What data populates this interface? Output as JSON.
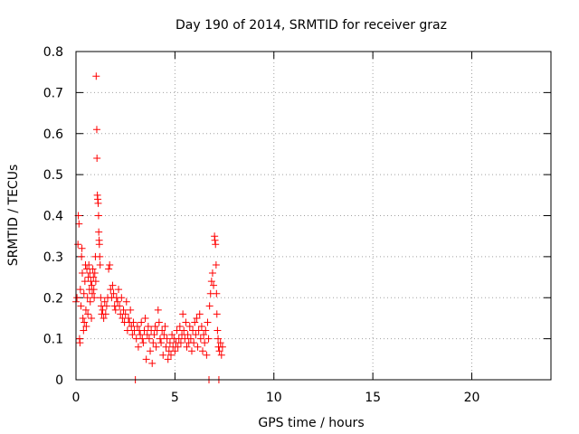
{
  "chart_data": {
    "type": "scatter",
    "title": "Day 190 of 2014, SRMTID for receiver graz",
    "xlabel": "GPS time / hours",
    "ylabel": "SRMTID / TECUs",
    "xlim": [
      0,
      24
    ],
    "ylim": [
      0,
      0.8
    ],
    "xticks": [
      0,
      5,
      10,
      15,
      20
    ],
    "yticks": [
      0,
      0.1,
      0.2,
      0.3,
      0.4,
      0.5,
      0.6,
      0.7,
      0.8
    ],
    "xtick_labels": [
      "0",
      "5",
      "10",
      "15",
      "20"
    ],
    "ytick_labels": [
      "0",
      "0.1",
      "0.2",
      "0.3",
      "0.4",
      "0.5",
      "0.6",
      "0.7",
      "0.8"
    ],
    "grid": true,
    "marker": "+",
    "series": [
      {
        "name": "graz",
        "color": "#ff0000",
        "points": [
          [
            0.0,
            0.19
          ],
          [
            0.05,
            0.2
          ],
          [
            0.1,
            0.33
          ],
          [
            0.12,
            0.4
          ],
          [
            0.15,
            0.38
          ],
          [
            0.18,
            0.1
          ],
          [
            0.2,
            0.09
          ],
          [
            0.22,
            0.22
          ],
          [
            0.25,
            0.18
          ],
          [
            0.28,
            0.3
          ],
          [
            0.3,
            0.32
          ],
          [
            0.32,
            0.26
          ],
          [
            0.35,
            0.15
          ],
          [
            0.38,
            0.12
          ],
          [
            0.4,
            0.21
          ],
          [
            0.42,
            0.14
          ],
          [
            0.45,
            0.24
          ],
          [
            0.48,
            0.28
          ],
          [
            0.5,
            0.17
          ],
          [
            0.52,
            0.13
          ],
          [
            0.55,
            0.27
          ],
          [
            0.58,
            0.2
          ],
          [
            0.6,
            0.16
          ],
          [
            0.62,
            0.25
          ],
          [
            0.65,
            0.28
          ],
          [
            0.68,
            0.22
          ],
          [
            0.7,
            0.26
          ],
          [
            0.72,
            0.19
          ],
          [
            0.75,
            0.24
          ],
          [
            0.78,
            0.15
          ],
          [
            0.8,
            0.23
          ],
          [
            0.82,
            0.21
          ],
          [
            0.85,
            0.27
          ],
          [
            0.88,
            0.25
          ],
          [
            0.9,
            0.22
          ],
          [
            0.92,
            0.2
          ],
          [
            0.95,
            0.26
          ],
          [
            0.98,
            0.3
          ],
          [
            1.0,
            0.24
          ],
          [
            1.02,
            0.74
          ],
          [
            1.05,
            0.61
          ],
          [
            1.06,
            0.54
          ],
          [
            1.08,
            0.45
          ],
          [
            1.1,
            0.44
          ],
          [
            1.12,
            0.43
          ],
          [
            1.14,
            0.4
          ],
          [
            1.15,
            0.36
          ],
          [
            1.17,
            0.34
          ],
          [
            1.18,
            0.33
          ],
          [
            1.2,
            0.3
          ],
          [
            1.22,
            0.28
          ],
          [
            1.25,
            0.2
          ],
          [
            1.28,
            0.18
          ],
          [
            1.3,
            0.16
          ],
          [
            1.35,
            0.17
          ],
          [
            1.4,
            0.15
          ],
          [
            1.45,
            0.19
          ],
          [
            1.5,
            0.16
          ],
          [
            1.55,
            0.18
          ],
          [
            1.6,
            0.2
          ],
          [
            1.65,
            0.27
          ],
          [
            1.7,
            0.28
          ],
          [
            1.75,
            0.22
          ],
          [
            1.8,
            0.2
          ],
          [
            1.85,
            0.23
          ],
          [
            1.9,
            0.21
          ],
          [
            1.95,
            0.18
          ],
          [
            2.0,
            0.17
          ],
          [
            2.05,
            0.2
          ],
          [
            2.1,
            0.19
          ],
          [
            2.15,
            0.22
          ],
          [
            2.2,
            0.18
          ],
          [
            2.25,
            0.16
          ],
          [
            2.3,
            0.2
          ],
          [
            2.35,
            0.15
          ],
          [
            2.4,
            0.17
          ],
          [
            2.45,
            0.14
          ],
          [
            2.5,
            0.16
          ],
          [
            2.55,
            0.19
          ],
          [
            2.6,
            0.12
          ],
          [
            2.65,
            0.15
          ],
          [
            2.7,
            0.14
          ],
          [
            2.75,
            0.17
          ],
          [
            2.8,
            0.13
          ],
          [
            2.85,
            0.11
          ],
          [
            2.9,
            0.14
          ],
          [
            2.95,
            0.12
          ],
          [
            3.0,
            0.0
          ],
          [
            3.05,
            0.1
          ],
          [
            3.1,
            0.13
          ],
          [
            3.15,
            0.08
          ],
          [
            3.2,
            0.12
          ],
          [
            3.25,
            0.11
          ],
          [
            3.3,
            0.14
          ],
          [
            3.35,
            0.1
          ],
          [
            3.4,
            0.09
          ],
          [
            3.45,
            0.12
          ],
          [
            3.5,
            0.15
          ],
          [
            3.55,
            0.05
          ],
          [
            3.6,
            0.11
          ],
          [
            3.65,
            0.13
          ],
          [
            3.7,
            0.1
          ],
          [
            3.75,
            0.07
          ],
          [
            3.8,
            0.12
          ],
          [
            3.85,
            0.04
          ],
          [
            3.9,
            0.09
          ],
          [
            3.95,
            0.11
          ],
          [
            4.0,
            0.13
          ],
          [
            4.05,
            0.08
          ],
          [
            4.1,
            0.12
          ],
          [
            4.15,
            0.17
          ],
          [
            4.2,
            0.14
          ],
          [
            4.25,
            0.1
          ],
          [
            4.3,
            0.09
          ],
          [
            4.35,
            0.12
          ],
          [
            4.4,
            0.06
          ],
          [
            4.45,
            0.11
          ],
          [
            4.5,
            0.13
          ],
          [
            4.55,
            0.08
          ],
          [
            4.6,
            0.1
          ],
          [
            4.65,
            0.05
          ],
          [
            4.7,
            0.07
          ],
          [
            4.75,
            0.09
          ],
          [
            4.8,
            0.06
          ],
          [
            4.85,
            0.11
          ],
          [
            4.9,
            0.08
          ],
          [
            4.95,
            0.1
          ],
          [
            5.0,
            0.07
          ],
          [
            5.05,
            0.09
          ],
          [
            5.1,
            0.12
          ],
          [
            5.15,
            0.08
          ],
          [
            5.2,
            0.1
          ],
          [
            5.25,
            0.13
          ],
          [
            5.3,
            0.09
          ],
          [
            5.35,
            0.11
          ],
          [
            5.4,
            0.16
          ],
          [
            5.45,
            0.12
          ],
          [
            5.5,
            0.1
          ],
          [
            5.55,
            0.14
          ],
          [
            5.6,
            0.08
          ],
          [
            5.65,
            0.11
          ],
          [
            5.7,
            0.09
          ],
          [
            5.75,
            0.13
          ],
          [
            5.8,
            0.1
          ],
          [
            5.85,
            0.07
          ],
          [
            5.9,
            0.12
          ],
          [
            5.95,
            0.09
          ],
          [
            6.0,
            0.14
          ],
          [
            6.05,
            0.11
          ],
          [
            6.1,
            0.15
          ],
          [
            6.15,
            0.08
          ],
          [
            6.2,
            0.12
          ],
          [
            6.25,
            0.16
          ],
          [
            6.3,
            0.1
          ],
          [
            6.35,
            0.13
          ],
          [
            6.4,
            0.07
          ],
          [
            6.45,
            0.11
          ],
          [
            6.5,
            0.09
          ],
          [
            6.55,
            0.12
          ],
          [
            6.6,
            0.06
          ],
          [
            6.65,
            0.14
          ],
          [
            6.7,
            0.1
          ],
          [
            6.72,
            0.0
          ],
          [
            6.75,
            0.18
          ],
          [
            6.8,
            0.21
          ],
          [
            6.85,
            0.24
          ],
          [
            6.9,
            0.26
          ],
          [
            6.95,
            0.23
          ],
          [
            7.0,
            0.35
          ],
          [
            7.02,
            0.34
          ],
          [
            7.05,
            0.33
          ],
          [
            7.08,
            0.28
          ],
          [
            7.1,
            0.21
          ],
          [
            7.12,
            0.16
          ],
          [
            7.15,
            0.12
          ],
          [
            7.18,
            0.1
          ],
          [
            7.2,
            0.08
          ],
          [
            7.22,
            0.0
          ],
          [
            7.25,
            0.07
          ],
          [
            7.3,
            0.09
          ],
          [
            7.35,
            0.06
          ],
          [
            7.4,
            0.08
          ]
        ]
      }
    ]
  }
}
